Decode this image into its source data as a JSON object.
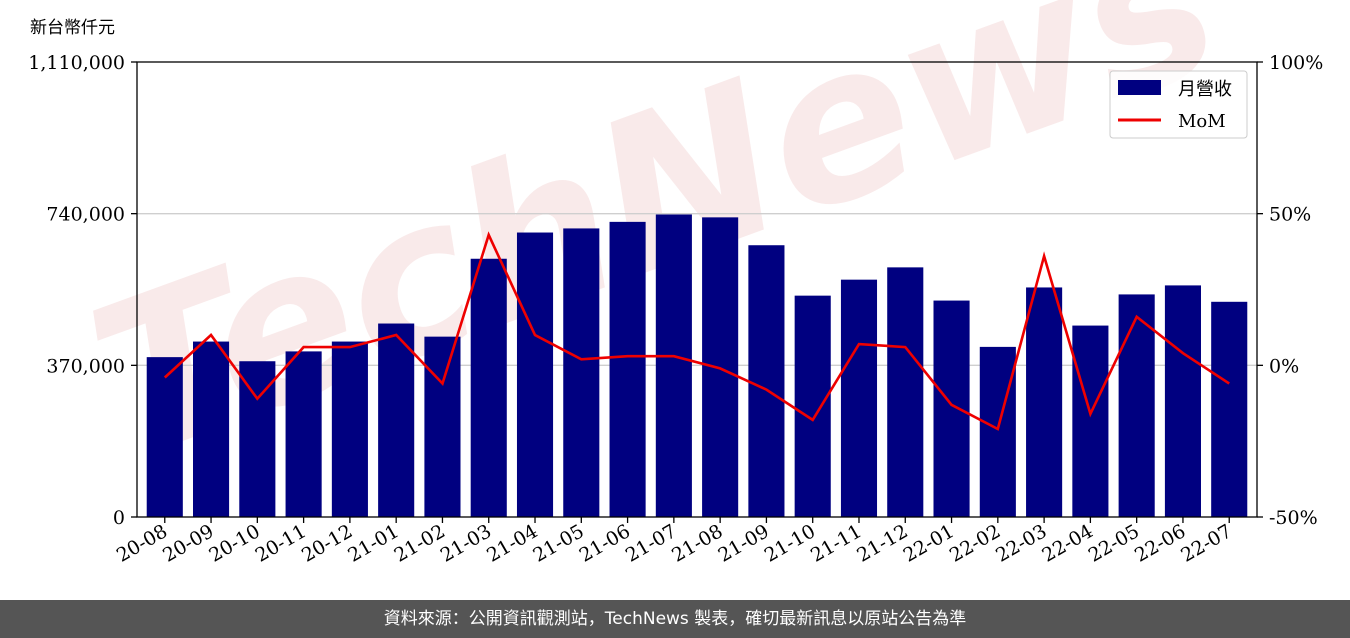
{
  "chart_data": {
    "type": "bar",
    "unit_label": "新台幣仟元",
    "categories": [
      "20-08",
      "20-09",
      "20-10",
      "20-11",
      "20-12",
      "21-01",
      "21-02",
      "21-03",
      "21-04",
      "21-05",
      "21-06",
      "21-07",
      "21-08",
      "21-09",
      "21-10",
      "21-11",
      "21-12",
      "22-01",
      "22-02",
      "22-03",
      "22-04",
      "22-05",
      "22-06",
      "22-07"
    ],
    "series": [
      {
        "name": "月營收",
        "type": "bar",
        "axis": "left",
        "color": "#000080",
        "values": [
          390000,
          428000,
          380000,
          404000,
          428000,
          472000,
          440000,
          630000,
          694000,
          704000,
          720000,
          738000,
          731000,
          663000,
          540000,
          579000,
          609000,
          528000,
          415000,
          560000,
          467000,
          543000,
          565000,
          525000
        ]
      },
      {
        "name": "MoM",
        "type": "line",
        "axis": "right",
        "color": "#ee0000",
        "values": [
          -4,
          10,
          -11,
          6,
          6,
          10,
          -6,
          43,
          10,
          2,
          3,
          3,
          -1,
          -8,
          -18,
          7,
          6,
          -13,
          -21,
          36,
          -16,
          16,
          4,
          -6
        ]
      }
    ],
    "y_left": {
      "min": 0,
      "max": 1110000,
      "ticks": [
        0,
        370000,
        740000,
        1110000
      ],
      "tick_labels": [
        "0",
        "370,000",
        "740,000",
        "1,110,000"
      ]
    },
    "y_right": {
      "min": -50,
      "max": 100,
      "ticks": [
        -50,
        0,
        50,
        100
      ],
      "tick_labels": [
        "-50%",
        "0%",
        "50%",
        "100%"
      ]
    },
    "grid": "horizontal",
    "legend_position": "top-right"
  },
  "watermark": "TechNews",
  "footer": {
    "text": "資料來源：公開資訊觀測站，TechNews 製表，確切最新訊息以原站公告為準"
  }
}
